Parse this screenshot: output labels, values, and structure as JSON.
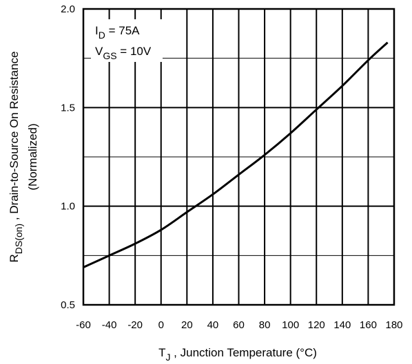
{
  "chart_data": {
    "type": "line",
    "x": [
      -60,
      -40,
      -20,
      0,
      20,
      40,
      60,
      80,
      100,
      120,
      140,
      160,
      175
    ],
    "series": [
      {
        "values": [
          0.69,
          0.75,
          0.81,
          0.88,
          0.97,
          1.06,
          1.16,
          1.26,
          1.37,
          1.49,
          1.61,
          1.74,
          1.83
        ]
      }
    ],
    "xlim": [
      -60,
      180
    ],
    "ylim": [
      0.5,
      2.0
    ],
    "x_ticks": [
      "-60",
      "-40",
      "-20",
      "0",
      "20",
      "40",
      "60",
      "80",
      "100",
      "120",
      "140",
      "160",
      "180"
    ],
    "y_ticks": [
      "0.5",
      "1.0",
      "1.5",
      "2.0"
    ],
    "xlabel": {
      "main": "T",
      "sub": "J",
      "rest": " , Junction Temperature (°C)"
    },
    "ylabel": {
      "main": "R",
      "sub": "DS(on)",
      "rest": " , Drain-to-Source On Resistance",
      "line2": "(Normalized)"
    },
    "annotations": [
      {
        "main": "I",
        "sub": "D",
        "rest": " = 75A"
      },
      {
        "main": "V",
        "sub": "GS",
        "rest": " = 10V"
      }
    ],
    "grid": true,
    "colors": {
      "line": "#000000",
      "grid": "#000000",
      "background": "#ffffff"
    }
  }
}
